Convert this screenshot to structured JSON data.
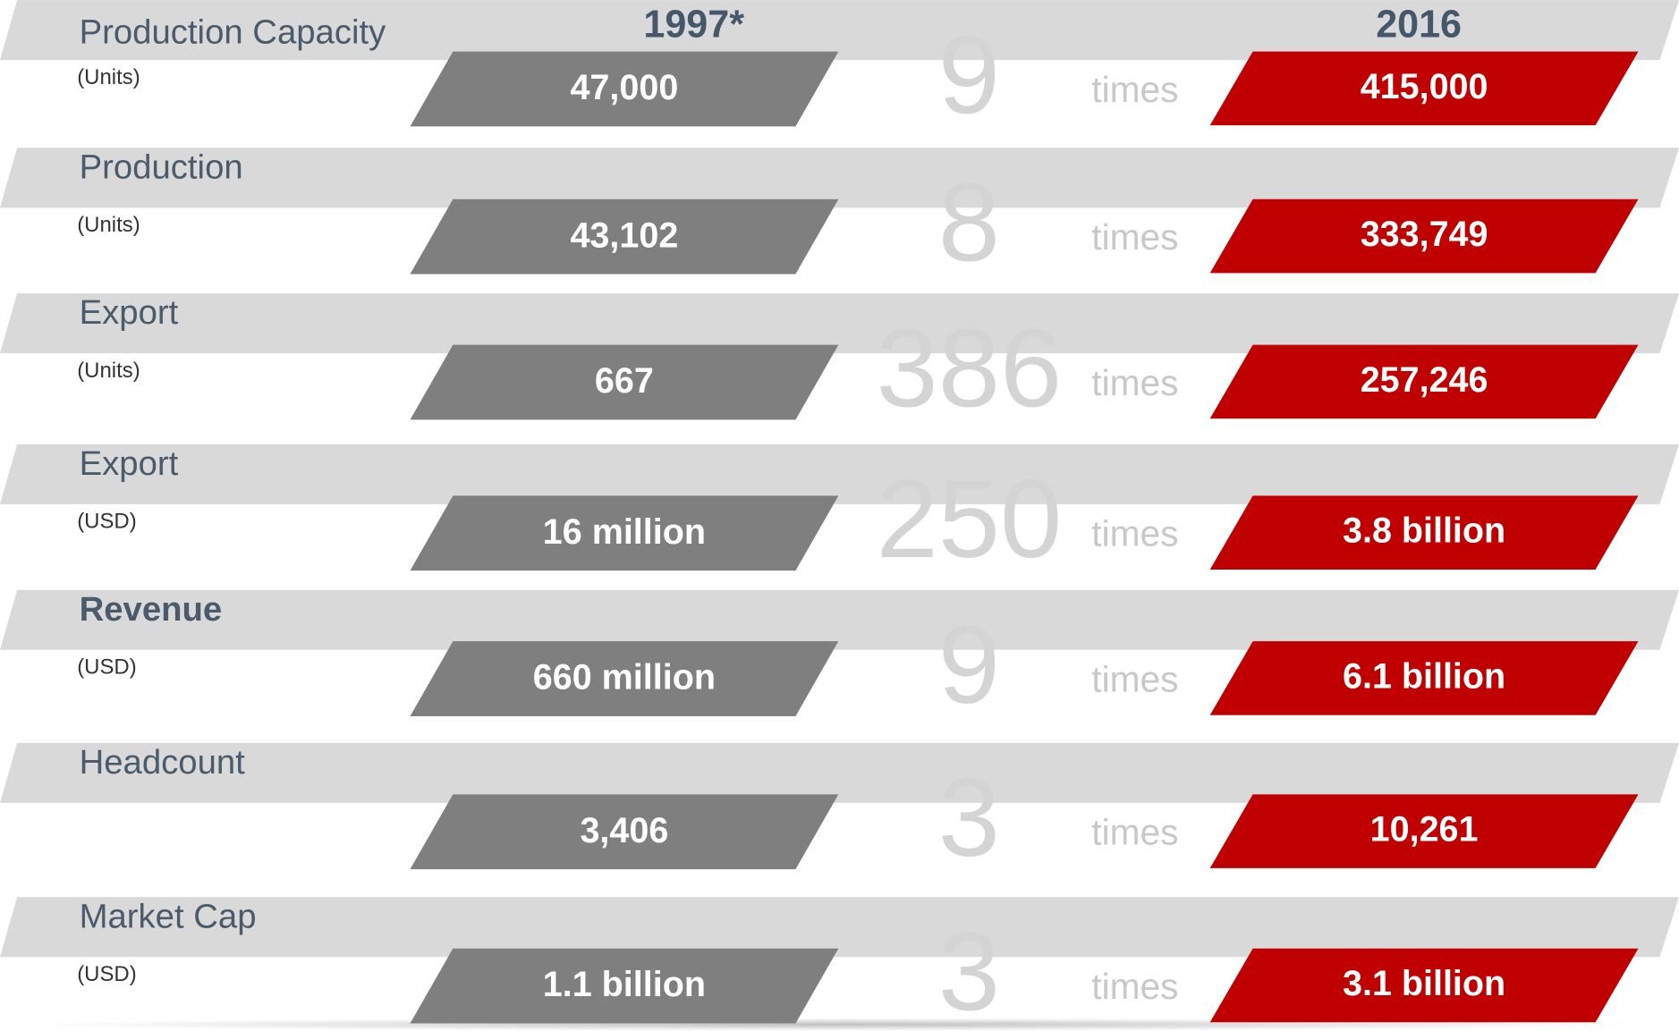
{
  "header": {
    "from_year": "1997*",
    "to_year": "2016"
  },
  "rows": [
    {
      "label": "Production Capacity",
      "unit": "(Units)",
      "from": "47,000",
      "multiple": "9",
      "times": "times",
      "to": "415,000"
    },
    {
      "label": "Production",
      "unit": "(Units)",
      "from": "43,102",
      "multiple": "8",
      "times": "times",
      "to": "333,749"
    },
    {
      "label": "Export",
      "unit": "(Units)",
      "from": "667",
      "multiple": "386",
      "times": "times",
      "to": "257,246"
    },
    {
      "label": "Export",
      "unit": "(USD)",
      "from": "16 million",
      "multiple": "250",
      "times": "times",
      "to": "3.8 billion"
    },
    {
      "label": "Revenue",
      "unit": "(USD)",
      "from": "660 million",
      "multiple": "9",
      "times": "times",
      "to": "6.1 billion",
      "label_bold": true
    },
    {
      "label": "Headcount",
      "from": "3,406",
      "multiple": "3",
      "times": "times",
      "to": "10,261"
    },
    {
      "label": "Market Cap",
      "unit": "(USD)",
      "from": "1.1 billion",
      "multiple": "3",
      "times": "times",
      "to": "3.1 billion"
    }
  ]
}
